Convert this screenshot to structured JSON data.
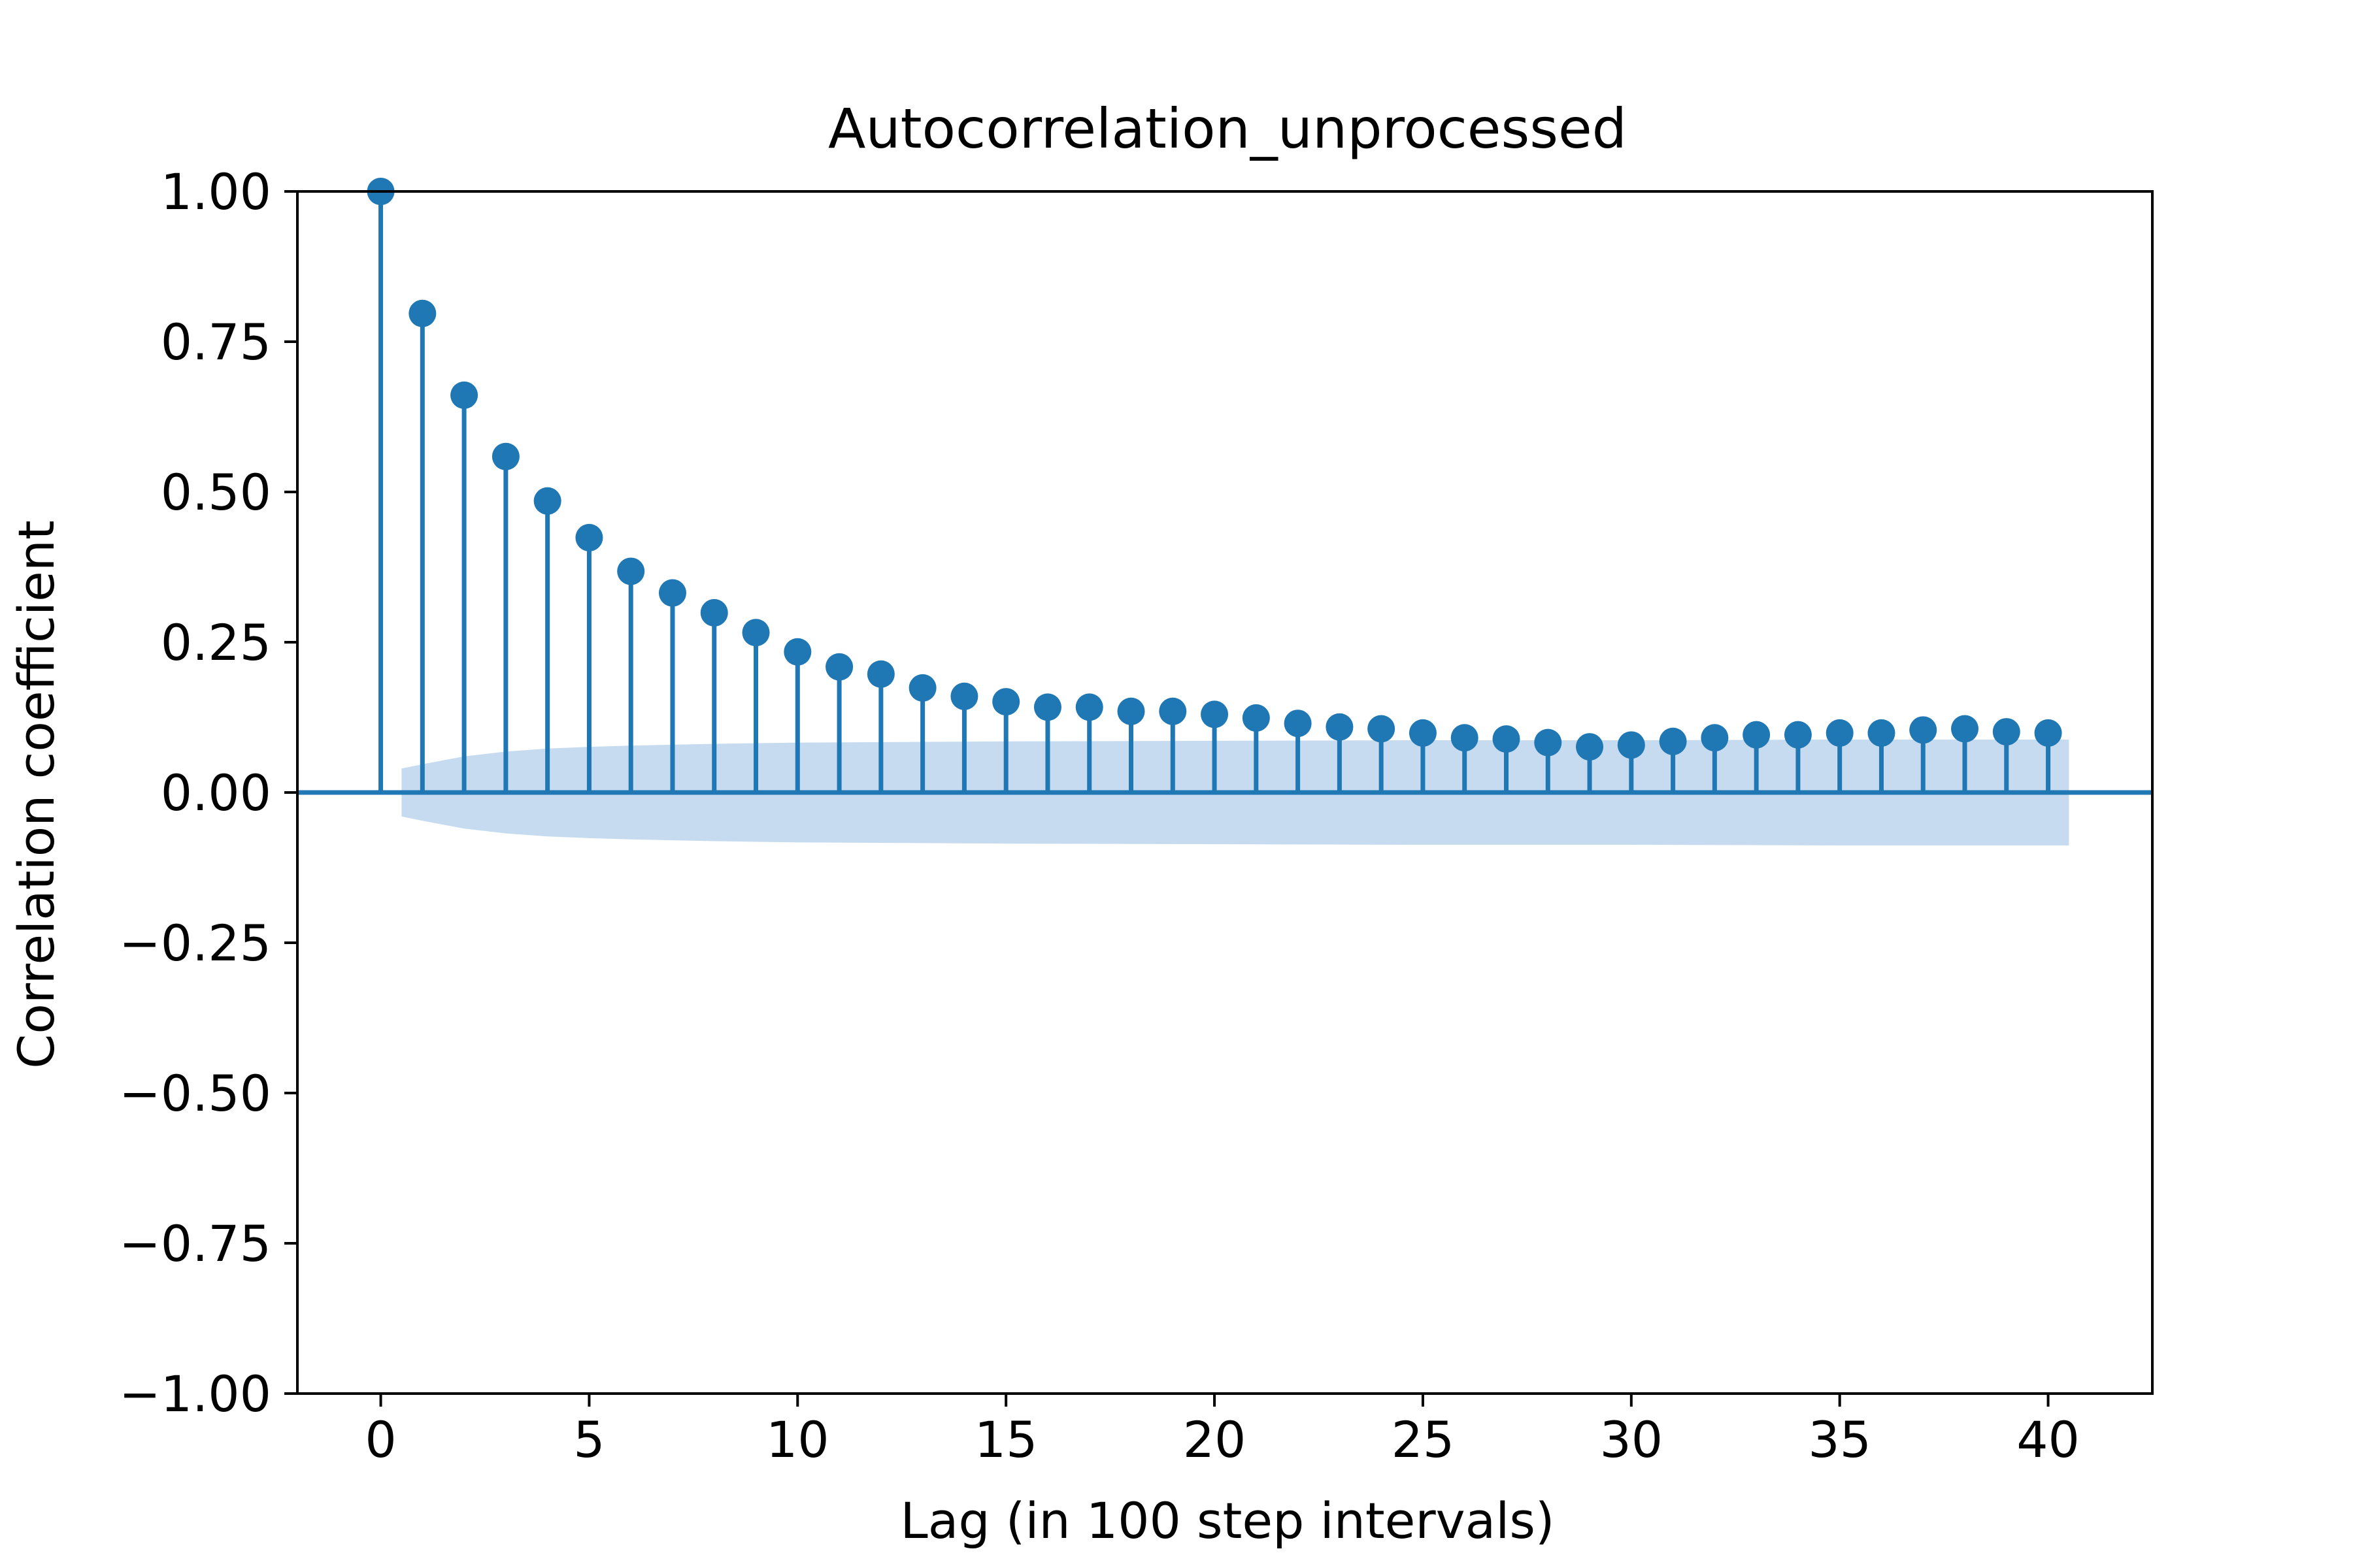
{
  "chart_data": {
    "type": "stem",
    "title": "Autocorrelation_unprocessed",
    "xlabel": "Lag (in 100 step intervals)",
    "ylabel": "Correlation coefficient",
    "xlim": [
      -2,
      42.5
    ],
    "ylim": [
      -1.0,
      1.0
    ],
    "x_ticks": [
      0,
      5,
      10,
      15,
      20,
      25,
      30,
      35,
      40
    ],
    "x_tick_labels": [
      "0",
      "5",
      "10",
      "15",
      "20",
      "25",
      "30",
      "35",
      "40"
    ],
    "y_ticks": [
      1.0,
      0.75,
      0.5,
      0.25,
      0.0,
      -0.25,
      -0.5,
      -0.75,
      -1.0
    ],
    "y_tick_labels": [
      "1.00",
      "0.75",
      "0.50",
      "0.25",
      "0.00",
      "−0.25",
      "−0.50",
      "−0.75",
      "−1.00"
    ],
    "grid": false,
    "lags": [
      0,
      1,
      2,
      3,
      4,
      5,
      6,
      7,
      8,
      9,
      10,
      11,
      12,
      13,
      14,
      15,
      16,
      17,
      18,
      19,
      20,
      21,
      22,
      23,
      24,
      25,
      26,
      27,
      28,
      29,
      30,
      31,
      32,
      33,
      34,
      35,
      36,
      37,
      38,
      39,
      40
    ],
    "values": [
      1.0,
      0.797,
      0.661,
      0.559,
      0.485,
      0.424,
      0.368,
      0.332,
      0.299,
      0.266,
      0.234,
      0.209,
      0.197,
      0.174,
      0.16,
      0.151,
      0.142,
      0.142,
      0.135,
      0.135,
      0.13,
      0.124,
      0.115,
      0.109,
      0.106,
      0.099,
      0.091,
      0.089,
      0.083,
      0.076,
      0.079,
      0.085,
      0.091,
      0.096,
      0.096,
      0.099,
      0.099,
      0.104,
      0.106,
      0.101,
      0.099
    ],
    "confidence_band": {
      "x_range": [
        0.5,
        40.5
      ],
      "lags": [
        0.5,
        1,
        2,
        3,
        4,
        5,
        6,
        8,
        10,
        15,
        20,
        25,
        30,
        35,
        40,
        40.5
      ],
      "upper": [
        0.04,
        0.047,
        0.06,
        0.068,
        0.073,
        0.076,
        0.078,
        0.081,
        0.083,
        0.085,
        0.086,
        0.087,
        0.087,
        0.088,
        0.088,
        0.088
      ]
    },
    "colors": {
      "stem": "#1f77b4",
      "band": "#c6dbef",
      "axes": "#000000"
    }
  }
}
